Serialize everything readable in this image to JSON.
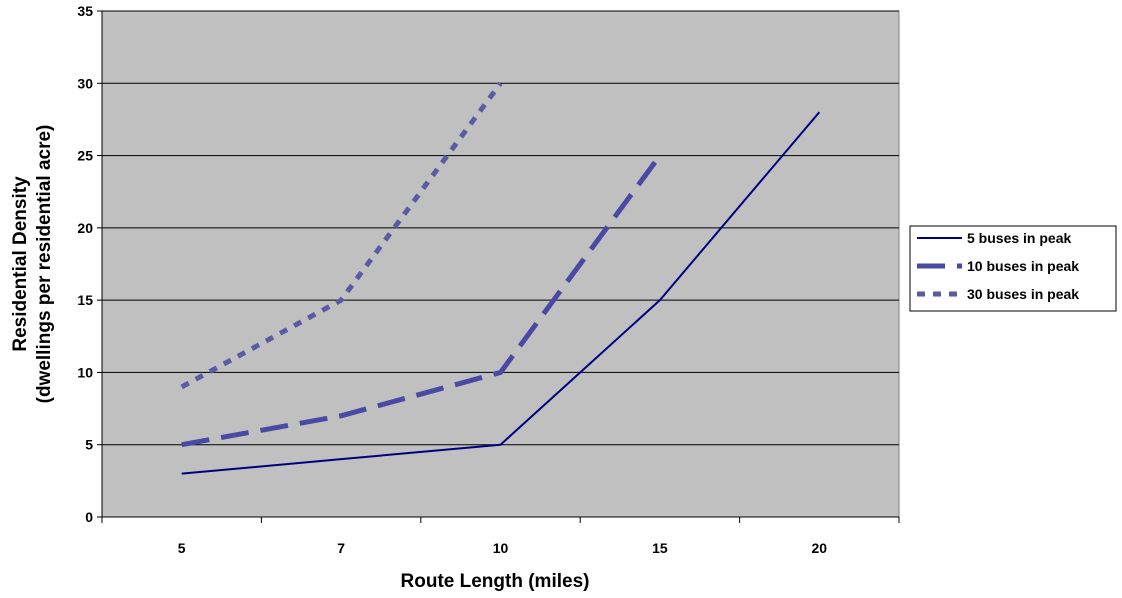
{
  "chart_data": {
    "type": "line",
    "categories": [
      "5",
      "7",
      "10",
      "15",
      "20"
    ],
    "xlabel": "Route Length (miles)",
    "ylabel": [
      "Residential Density",
      "(dwellings per residential acre)"
    ],
    "ylim": [
      0,
      35
    ],
    "yticks": [
      0,
      5,
      10,
      15,
      20,
      25,
      30,
      35
    ],
    "grid": true,
    "legend_position": "right",
    "plot_background": "#c0c0c0",
    "series": [
      {
        "name": "5 buses in peak",
        "values": [
          3,
          4,
          5,
          15,
          28
        ],
        "color": "#000080",
        "style": "solid"
      },
      {
        "name": "10 buses in peak",
        "values": [
          5,
          7,
          10,
          25,
          null
        ],
        "color": "#4a4aa5",
        "style": "long-dash"
      },
      {
        "name": "30 buses in peak",
        "values": [
          9,
          15,
          30,
          null,
          null
        ],
        "color": "#5a5aa5",
        "style": "short-dash"
      }
    ]
  }
}
